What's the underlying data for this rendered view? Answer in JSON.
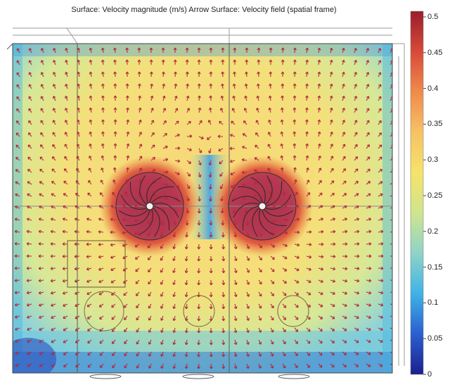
{
  "title": "Surface: Velocity magnitude (m/s)  Arrow Surface: Velocity field (spatial frame)",
  "colors": {
    "colormap": [
      "#1c1f8f",
      "#2a5fd0",
      "#3fb3e6",
      "#8fd3c8",
      "#cfe58e",
      "#f6e36a",
      "#f7c265",
      "#f08a4b",
      "#d84a3a",
      "#9a1d2b"
    ],
    "arrow": "#b02a3c",
    "frame": "#555555"
  },
  "chart_data": {
    "type": "heatmap",
    "description_quantity": "velocity magnitude (m/s)",
    "colorbar": {
      "min": 0,
      "max": 0.5,
      "ticks": [
        "0.5",
        "0.45",
        "0.4",
        "0.35",
        "0.3",
        "0.25",
        "0.2",
        "0.15",
        "0.1",
        "0.05",
        "0"
      ]
    },
    "fans": [
      {
        "label": "left fan",
        "peak_velocity": 0.5
      },
      {
        "label": "right fan",
        "peak_velocity": 0.5
      }
    ]
  }
}
